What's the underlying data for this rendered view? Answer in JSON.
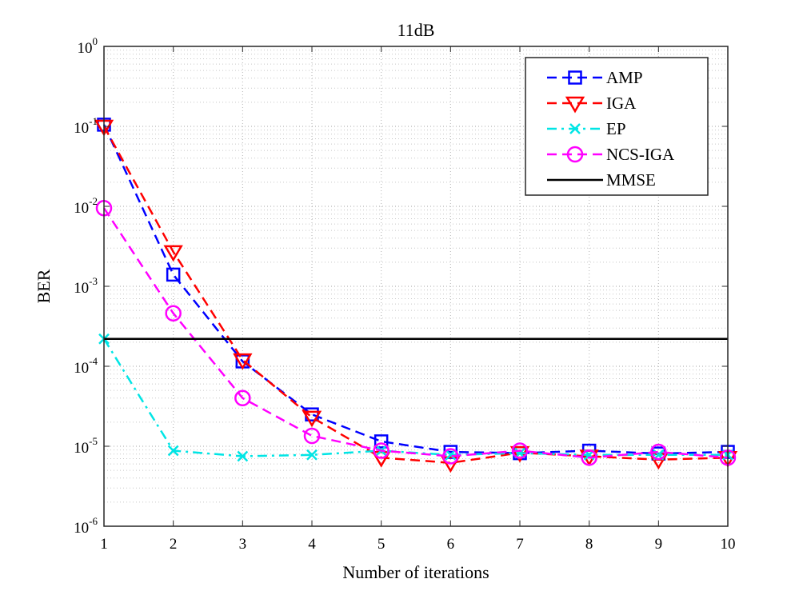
{
  "chart_data": {
    "type": "line",
    "title": "11dB",
    "xlabel": "Number of iterations",
    "ylabel": "BER",
    "yscale": "log",
    "xlim": [
      1,
      10
    ],
    "ylim_exp": [
      -6,
      0
    ],
    "xticks": [
      "1",
      "2",
      "3",
      "4",
      "5",
      "6",
      "7",
      "8",
      "9",
      "10"
    ],
    "yticks": [
      {
        "base": "10",
        "exp": "-6"
      },
      {
        "base": "10",
        "exp": "-5"
      },
      {
        "base": "10",
        "exp": "-4"
      },
      {
        "base": "10",
        "exp": "-3"
      },
      {
        "base": "10",
        "exp": "-2"
      },
      {
        "base": "10",
        "exp": "-1"
      },
      {
        "base": "10",
        "exp": "0"
      }
    ],
    "grid": true,
    "legend_position": "top-right",
    "x": [
      1,
      2,
      3,
      4,
      5,
      6,
      7,
      8,
      9,
      10
    ],
    "series": [
      {
        "name": "AMP",
        "color": "#0000ff",
        "dash": "dashed",
        "marker": "square",
        "values": [
          0.105,
          0.0014,
          0.000115,
          2.5e-05,
          1.15e-05,
          8.5e-06,
          8.2e-06,
          8.8e-06,
          8.1e-06,
          8.5e-06
        ]
      },
      {
        "name": "IGA",
        "color": "#ff0000",
        "dash": "dashed",
        "marker": "triangle-down",
        "values": [
          0.1,
          0.0027,
          0.00012,
          2.3e-05,
          7.2e-06,
          6.2e-06,
          8.3e-06,
          7.5e-06,
          6.8e-06,
          7.2e-06
        ]
      },
      {
        "name": "EP",
        "color": "#00e5e5",
        "dash": "dashdot",
        "marker": "x",
        "values": [
          0.00022,
          8.8e-06,
          7.5e-06,
          7.8e-06,
          8.8e-06,
          7.8e-06,
          8.2e-06,
          7.8e-06,
          7.8e-06,
          7.8e-06
        ]
      },
      {
        "name": "NCS-IGA",
        "color": "#ff00ff",
        "dash": "dashed",
        "marker": "circle",
        "values": [
          0.0095,
          0.00046,
          4e-05,
          1.35e-05,
          8.8e-06,
          7.5e-06,
          8.8e-06,
          7.2e-06,
          8.5e-06,
          7.2e-06
        ]
      },
      {
        "name": "MMSE",
        "color": "#000000",
        "dash": "solid",
        "marker": "none",
        "values": [
          0.00022,
          0.00022,
          0.00022,
          0.00022,
          0.00022,
          0.00022,
          0.00022,
          0.00022,
          0.00022,
          0.00022
        ]
      }
    ]
  }
}
